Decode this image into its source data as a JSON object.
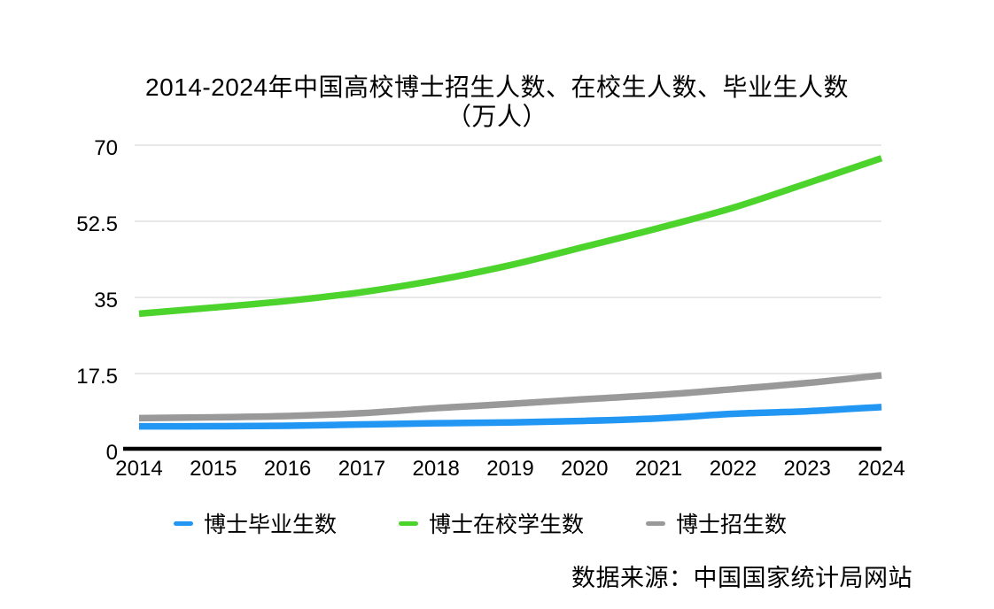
{
  "title": "2014-2024年中国高校博士招生人数、在校生人数、毕业生人数",
  "subtitle": "（万人）",
  "source_note": "数据来源：中国国家统计局网站",
  "colors": {
    "grid": "#d9d9d9",
    "axis": "#000000",
    "text": "#000000",
    "graduates_line": "#2196f3",
    "enrolled_line": "#4cd32c",
    "admissions_line": "#999999"
  },
  "chart_data": {
    "type": "line",
    "title": "2014-2024年中国高校博士招生人数、在校生人数、毕业生人数（万人）",
    "x": [
      2014,
      2015,
      2016,
      2017,
      2018,
      2019,
      2020,
      2021,
      2022,
      2023,
      2024
    ],
    "series": [
      {
        "name": "博士毕业生数",
        "color": "#2196f3",
        "values": [
          5.37,
          5.38,
          5.5,
          5.8,
          6.07,
          6.26,
          6.62,
          7.2,
          8.23,
          8.83,
          9.8
        ]
      },
      {
        "name": "博士在校学生数",
        "color": "#4cd32c",
        "values": [
          31.27,
          32.67,
          34.2,
          36.2,
          38.95,
          42.42,
          46.65,
          50.95,
          55.61,
          61.25,
          67.0
        ]
      },
      {
        "name": "博士招生数",
        "color": "#999999",
        "values": [
          7.26,
          7.44,
          7.73,
          8.39,
          9.55,
          10.52,
          11.6,
          12.58,
          13.9,
          15.33,
          17.1
        ]
      }
    ],
    "xlabel": "",
    "ylabel": "",
    "ylim": [
      0,
      70
    ],
    "yticks": [
      0,
      17.5,
      35,
      52.5,
      70
    ],
    "grid": true,
    "legend_position": "bottom"
  }
}
